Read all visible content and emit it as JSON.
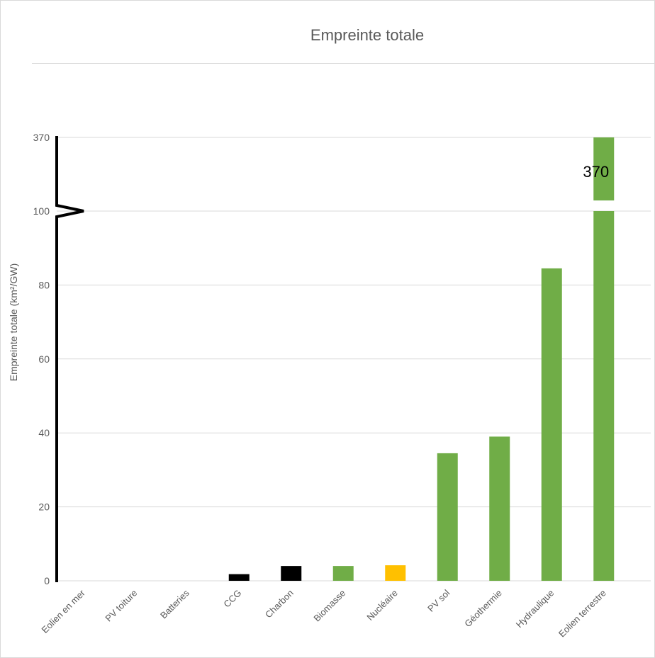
{
  "chart_data": {
    "type": "bar",
    "title": "Empreinte totale",
    "xlabel": "",
    "ylabel": "Empreinte totale (km²/GW)",
    "ylim": [
      0,
      100
    ],
    "axis_break": {
      "value": 100,
      "upper_tick": 370
    },
    "y_ticks": [
      0,
      20,
      40,
      60,
      80,
      100
    ],
    "y_tick_labels": [
      "0",
      "20",
      "40",
      "60",
      "80",
      "100",
      "370"
    ],
    "grid": true,
    "categories": [
      "Eolien en mer",
      "PV toiture",
      "Batteries",
      "CCG",
      "Charbon",
      "Biomasse",
      "Nucléaire",
      "PV sol",
      "Géothermie",
      "Hydraulique",
      "Eolien terrestre"
    ],
    "values": [
      0,
      0,
      0,
      1.8,
      4,
      4,
      4.2,
      34.5,
      39,
      84.5,
      370
    ],
    "colors": [
      "#70ad47",
      "#70ad47",
      "#70ad47",
      "#000000",
      "#000000",
      "#70ad47",
      "#ffc000",
      "#70ad47",
      "#70ad47",
      "#70ad47",
      "#70ad47"
    ],
    "data_labels": [
      {
        "category": "Eolien terrestre",
        "text": "370"
      }
    ]
  }
}
